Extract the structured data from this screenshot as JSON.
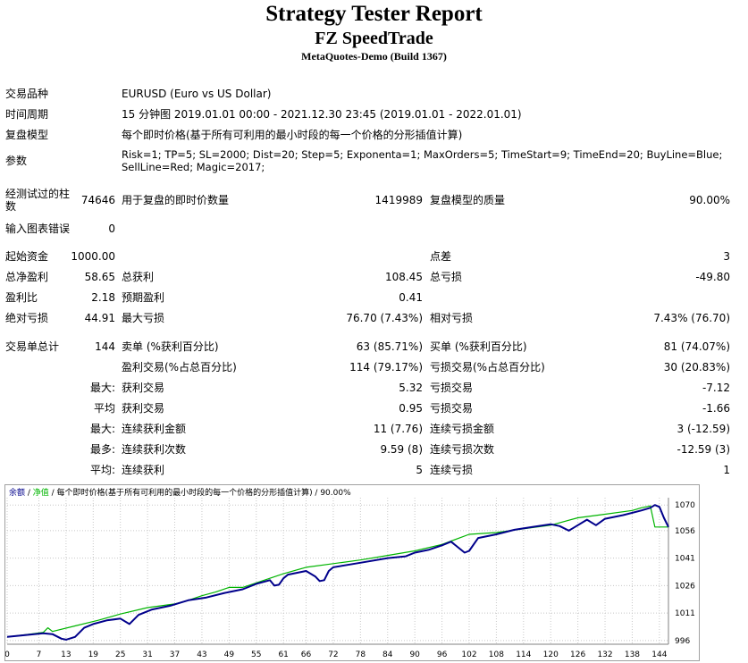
{
  "header": {
    "title": "Strategy Tester Report",
    "expert": "FZ SpeedTrade",
    "server": "MetaQuotes-Demo (Build 1367)"
  },
  "settings": {
    "symbol_label": "交易品种",
    "symbol_value": "EURUSD (Euro vs US Dollar)",
    "period_label": "时间周期",
    "period_value": "15 分钟图 2019.01.01 00:00 - 2021.12.30 23:45 (2019.01.01 - 2022.01.01)",
    "model_label": "复盘模型",
    "model_value": "每个即时价格(基于所有可利用的最小时段的每一个价格的分形插值计算)",
    "params_label": "参数",
    "params_line1": "Risk=1; TP=5; SL=2000; Dist=20; Step=5; Exponenta=1; MaxOrders=5; TimeStart=9; TimeEnd=20; BuyLine=Blue;",
    "params_line2": "SellLine=Red; Magic=2017;"
  },
  "bars_row": {
    "bars_label_1": "经测试过的柱",
    "bars_label_2": "数",
    "bars_value": "74646",
    "ticks_label": "用于复盘的即时价数量",
    "ticks_value": "1419989",
    "quality_label": "复盘模型的质量",
    "quality_value": "90.00%"
  },
  "errors_row": {
    "label": "输入图表错误",
    "value": "0"
  },
  "stats": [
    {
      "c1": "起始资金",
      "v1": "1000.00",
      "c2": "",
      "v2": "",
      "c3": "点差",
      "v3": "3"
    },
    {
      "c1": "总净盈利",
      "v1": "58.65",
      "c2": "总获利",
      "v2": "108.45",
      "c3": "总亏损",
      "v3": "-49.80"
    },
    {
      "c1": "盈利比",
      "v1": "2.18",
      "c2": "预期盈利",
      "v2": "0.41",
      "c3": "",
      "v3": ""
    },
    {
      "c1": "绝对亏损",
      "v1": "44.91",
      "c2": "最大亏损",
      "v2": "76.70 (7.43%)",
      "c3": "相对亏损",
      "v3": "7.43% (76.70)"
    }
  ],
  "trades": [
    {
      "c1": "交易单总计",
      "v1": "144",
      "c2": "卖单 (%获利百分比)",
      "v2": "63 (85.71%)",
      "c3": "买单 (%获利百分比)",
      "v3": "81 (74.07%)"
    },
    {
      "c1": "",
      "v1": "",
      "c2": "盈利交易(%占总百分比)",
      "v2": "114 (79.17%)",
      "c3": "亏损交易(%占总百分比)",
      "v3": "30 (20.83%)"
    },
    {
      "c1": "",
      "v1": "最大:",
      "c2": "获利交易",
      "v2": "5.32",
      "c3": "亏损交易",
      "v3": "-7.12"
    },
    {
      "c1": "",
      "v1": "平均",
      "c2": "获利交易",
      "v2": "0.95",
      "c3": "亏损交易",
      "v3": "-1.66"
    },
    {
      "c1": "",
      "v1": "最大:",
      "c2": "连续获利金额",
      "v2": "11 (7.76)",
      "c3": "连续亏损金额",
      "v3": "3 (-12.59)"
    },
    {
      "c1": "",
      "v1": "最多:",
      "c2": "连续获利次数",
      "v2": "9.59 (8)",
      "c3": "连续亏损次数",
      "v3": "-12.59 (3)"
    },
    {
      "c1": "",
      "v1": "平均:",
      "c2": "连续获利",
      "v2": "5",
      "c3": "连续亏损",
      "v3": "1"
    }
  ],
  "chart_data": {
    "type": "line",
    "legend": {
      "balance": "余额",
      "sep1": " / ",
      "equity": "净值",
      "rest": " / 每个即时价格(基于所有可利用的最小时段的每一个价格的分形插值计算) / 90.00%"
    },
    "colors": {
      "balance": "#00008b",
      "equity": "#00b400",
      "legend_text": "#000080",
      "grid": "#c8c8c8"
    },
    "grid": true,
    "x_ticks": [
      0,
      7,
      13,
      19,
      25,
      31,
      37,
      43,
      49,
      55,
      61,
      66,
      72,
      78,
      84,
      90,
      96,
      102,
      108,
      114,
      120,
      126,
      132,
      138,
      144
    ],
    "y_ticks": [
      996,
      1011,
      1026,
      1041,
      1056,
      1070
    ],
    "xlim": [
      0,
      146
    ],
    "ylim": [
      994,
      1074
    ],
    "series": [
      {
        "name": "余额",
        "key": "balance",
        "x": [
          0,
          4,
          8,
          10,
          12,
          13,
          15,
          17,
          19,
          22,
          25,
          27,
          29,
          32,
          36,
          40,
          44,
          48,
          52,
          55,
          58,
          59,
          60,
          61,
          62,
          66,
          68,
          69,
          70,
          71,
          72,
          78,
          84,
          88,
          90,
          93,
          96,
          98,
          100,
          101,
          102,
          104,
          108,
          112,
          116,
          120,
          122,
          124,
          125,
          128,
          130,
          132,
          136,
          140,
          142,
          143,
          144,
          145,
          146
        ],
        "y": [
          998,
          999,
          1000,
          999.5,
          997,
          996.5,
          998,
          1003,
          1005,
          1007,
          1008,
          1005,
          1010,
          1013,
          1015,
          1018,
          1019.5,
          1022,
          1024,
          1027,
          1029,
          1026,
          1026.5,
          1030,
          1032,
          1034,
          1031,
          1028.5,
          1029,
          1034,
          1036,
          1038.5,
          1041,
          1042,
          1044,
          1045.5,
          1048,
          1050,
          1046,
          1044,
          1045,
          1052,
          1054,
          1056.5,
          1058,
          1059.5,
          1058.5,
          1056,
          1057.5,
          1062,
          1059,
          1062.5,
          1064.5,
          1067,
          1068.5,
          1070,
          1069,
          1063,
          1058
        ]
      },
      {
        "name": "净值",
        "key": "equity",
        "x": [
          0,
          5,
          8,
          9,
          10,
          15,
          20,
          25,
          31,
          37,
          40,
          43,
          46,
          49,
          52,
          55,
          58,
          61,
          66,
          72,
          78,
          84,
          90,
          96,
          102,
          108,
          114,
          120,
          126,
          132,
          138,
          140,
          142,
          143,
          146
        ],
        "y": [
          998,
          999.5,
          1000.5,
          1003,
          1001,
          1004,
          1007,
          1010.5,
          1014,
          1016,
          1018,
          1020.5,
          1022.5,
          1025,
          1025,
          1027.5,
          1030,
          1032.5,
          1036,
          1038,
          1040,
          1042.5,
          1045,
          1048.5,
          1054,
          1055,
          1057,
          1059,
          1063,
          1065,
          1067,
          1068.5,
          1069.5,
          1058,
          1058
        ]
      }
    ]
  }
}
